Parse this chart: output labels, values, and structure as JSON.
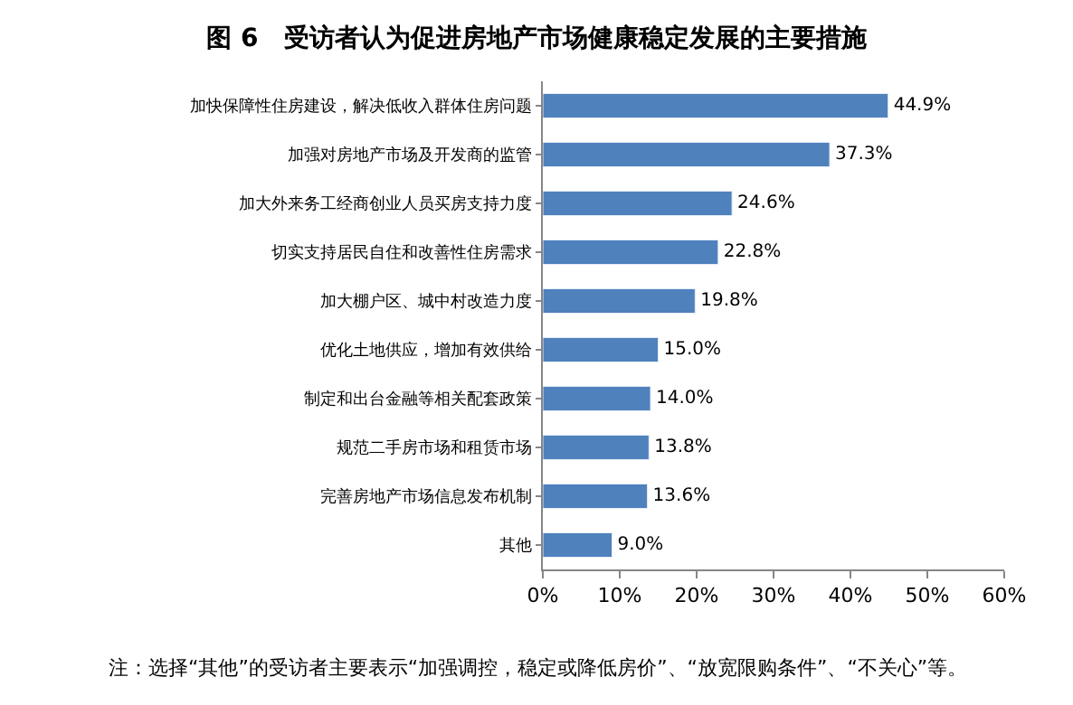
{
  "chart_data": {
    "type": "bar",
    "orientation": "horizontal",
    "title": "图 6　受访者认为促进房地产市场健康稳定发展的主要措施",
    "categories": [
      "加快保障性住房建设，解决低收入群体住房问题",
      "加强对房地产市场及开发商的监管",
      "加大外来务工经商创业人员买房支持力度",
      "切实支持居民自住和改善性住房需求",
      "加大棚户区、城中村改造力度",
      "优化土地供应，增加有效供给",
      "制定和出台金融等相关配套政策",
      "规范二手房市场和租赁市场",
      "完善房地产市场信息发布机制",
      "其他"
    ],
    "values": [
      44.9,
      37.3,
      24.6,
      22.8,
      19.8,
      15.0,
      14.0,
      13.8,
      13.6,
      9.0
    ],
    "value_labels": [
      "44.9%",
      "37.3%",
      "24.6%",
      "22.8%",
      "19.8%",
      "15.0%",
      "14.0%",
      "13.8%",
      "13.6%",
      "9.0%"
    ],
    "color": "#4f81bd",
    "xlim": [
      0,
      60
    ],
    "xticks": [
      {
        "value": 0,
        "label": "0%"
      },
      {
        "value": 10,
        "label": "10%"
      },
      {
        "value": 20,
        "label": "20%"
      },
      {
        "value": 30,
        "label": "30%"
      },
      {
        "value": 40,
        "label": "40%"
      },
      {
        "value": 50,
        "label": "50%"
      },
      {
        "value": 60,
        "label": "60%"
      }
    ],
    "legend": false,
    "annotations": [
      "注：选择“其他”的受访者主要表示“加强调控，稳定或降低房价”、“放宽限购条件”、“不关心”等。"
    ]
  }
}
